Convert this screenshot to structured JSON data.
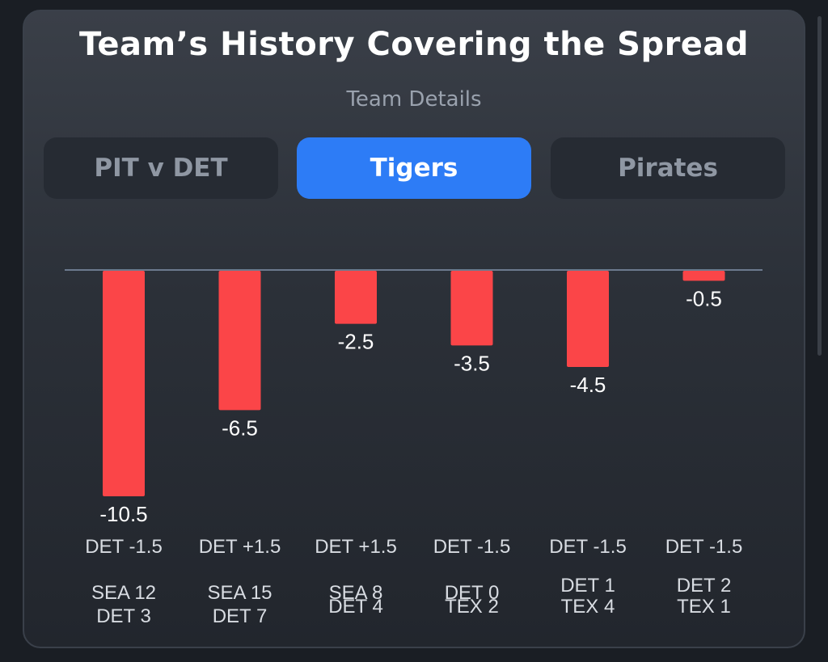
{
  "header": {
    "title": "Team’s History Covering the Spread",
    "subtitle": "Team Details"
  },
  "tabs": [
    {
      "label": "PIT v DET",
      "active": false
    },
    {
      "label": "Tigers",
      "active": true
    },
    {
      "label": "Pirates",
      "active": false
    }
  ],
  "colors": {
    "bar": "#fb4548",
    "baseline": "#6c7a8e",
    "accent": "#2d7cf6",
    "text": "#ffffff",
    "muted": "#d8dce2"
  },
  "chart_data": {
    "type": "bar",
    "categories": [
      "DET -1.5",
      "DET +1.5",
      "DET +1.5",
      "DET -1.5",
      "DET -1.5",
      "DET -1.5"
    ],
    "values": [
      -10.5,
      -6.5,
      -2.5,
      -3.5,
      -4.5,
      -0.5
    ],
    "value_labels": [
      "-10.5",
      "-6.5",
      "-2.5",
      "-3.5",
      "-4.5",
      "-0.5"
    ],
    "scores": [
      [
        "SEA 12",
        "DET 3"
      ],
      [
        "SEA 15",
        "DET 7"
      ],
      [
        "SEA 8",
        "DET 4"
      ],
      [
        "DET 0",
        "TEX 2"
      ],
      [
        "DET 1",
        "TEX 4"
      ],
      [
        "DET 2",
        "TEX 1"
      ]
    ],
    "ylim": [
      -10.5,
      0
    ],
    "grid": false
  }
}
